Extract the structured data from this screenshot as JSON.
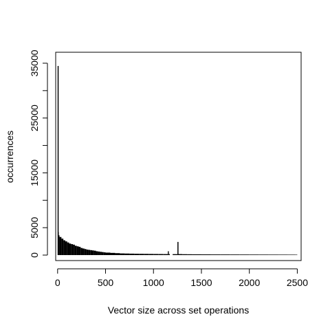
{
  "chart_data": {
    "type": "bar",
    "title": "",
    "xlabel": "Vector size across set operations",
    "ylabel": "occurrences",
    "xlim": [
      -20,
      2540
    ],
    "ylim": [
      -1000,
      37000
    ],
    "x_ticks": [
      0,
      500,
      1000,
      1500,
      2000,
      2500
    ],
    "x_tick_labels": [
      "0",
      "500",
      "1000",
      "1500",
      "2000",
      "2500"
    ],
    "y_ticks": [
      0,
      5000,
      10000,
      15000,
      20000,
      25000,
      30000,
      35000
    ],
    "y_tick_labels": [
      "0",
      "5000",
      "",
      "15000",
      "",
      "25000",
      "",
      "35000"
    ],
    "grid": false,
    "legend": "none",
    "bar_color": "#000000",
    "series": [
      {
        "x": [
          0,
          5,
          10,
          20,
          40,
          60,
          80,
          100,
          120,
          140,
          160,
          180,
          200,
          220,
          240,
          260,
          280,
          300,
          320,
          340,
          360,
          380,
          400,
          420,
          440,
          460,
          480,
          500,
          550,
          600,
          650,
          700,
          750,
          800,
          850,
          900,
          950,
          1000,
          1050,
          1100,
          1150,
          1160,
          1200,
          1250,
          1260,
          1300,
          1350,
          1400,
          1500,
          1600,
          1700,
          1800,
          1900,
          2000,
          2100,
          2200,
          2300,
          2400,
          2480
        ],
        "values": [
          34500,
          4200,
          3600,
          3300,
          3000,
          2700,
          2500,
          2300,
          2100,
          2000,
          1900,
          1700,
          1600,
          1500,
          1300,
          1200,
          1100,
          1000,
          950,
          900,
          850,
          800,
          700,
          650,
          600,
          550,
          500,
          450,
          400,
          350,
          300,
          280,
          260,
          240,
          230,
          220,
          210,
          200,
          190,
          180,
          700,
          180,
          170,
          2400,
          180,
          160,
          150,
          140,
          130,
          120,
          115,
          110,
          105,
          100,
          95,
          90,
          85,
          80,
          75
        ]
      }
    ]
  }
}
